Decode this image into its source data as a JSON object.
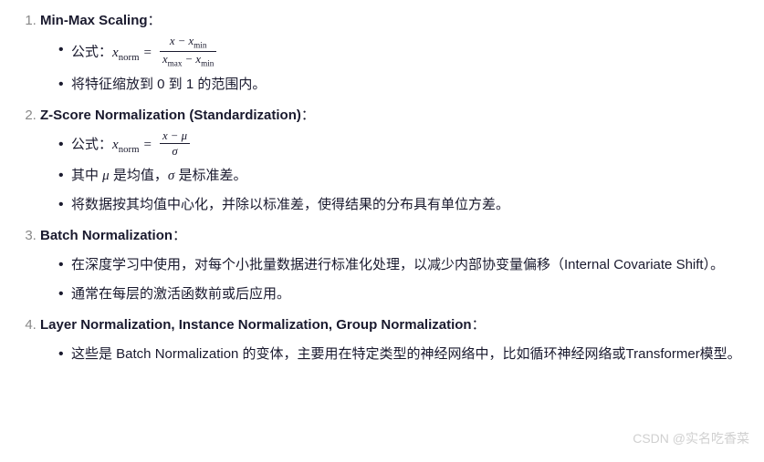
{
  "items": [
    {
      "title": "Min-Max Scaling",
      "bullets": [
        {
          "prefix": "公式：",
          "formula": "minmax"
        },
        {
          "text": "将特征缩放到 0 到 1 的范围内。"
        }
      ]
    },
    {
      "title": "Z-Score Normalization (Standardization)",
      "bullets": [
        {
          "prefix": "公式：",
          "formula": "zscore"
        },
        {
          "text_html": "其中 <span class=\"math\">μ</span> 是均值，<span class=\"math\">σ</span> 是标准差。"
        },
        {
          "text": "将数据按其均值中心化，并除以标准差，使得结果的分布具有单位方差。"
        }
      ]
    },
    {
      "title": "Batch Normalization",
      "bullets": [
        {
          "text": "在深度学习中使用，对每个小批量数据进行标准化处理，以减少内部协变量偏移（Internal Covariate Shift）。"
        },
        {
          "text": "通常在每层的激活函数前或后应用。"
        }
      ]
    },
    {
      "title": "Layer Normalization, Instance Normalization, Group Normalization",
      "bullets": [
        {
          "text": "这些是 Batch Normalization 的变体，主要用在特定类型的神经网络中，比如循环神经网络或Transformer模型。"
        }
      ]
    }
  ],
  "watermark": "CSDN @实名吃香菜",
  "formulas": {
    "minmax": {
      "lhs": "x<span class=\"sub\">norm</span>",
      "num": "x − x<span class=\"sub\">min</span>",
      "den": "x<span class=\"sub\">max</span> − x<span class=\"sub\">min</span>"
    },
    "zscore": {
      "lhs": "x<span class=\"sub\">norm</span>",
      "num": "x − μ",
      "den": "σ"
    }
  },
  "colors": {
    "text": "#1a1a2e",
    "marker": "#888888",
    "watermark": "#d0d0d0",
    "background": "#ffffff"
  }
}
